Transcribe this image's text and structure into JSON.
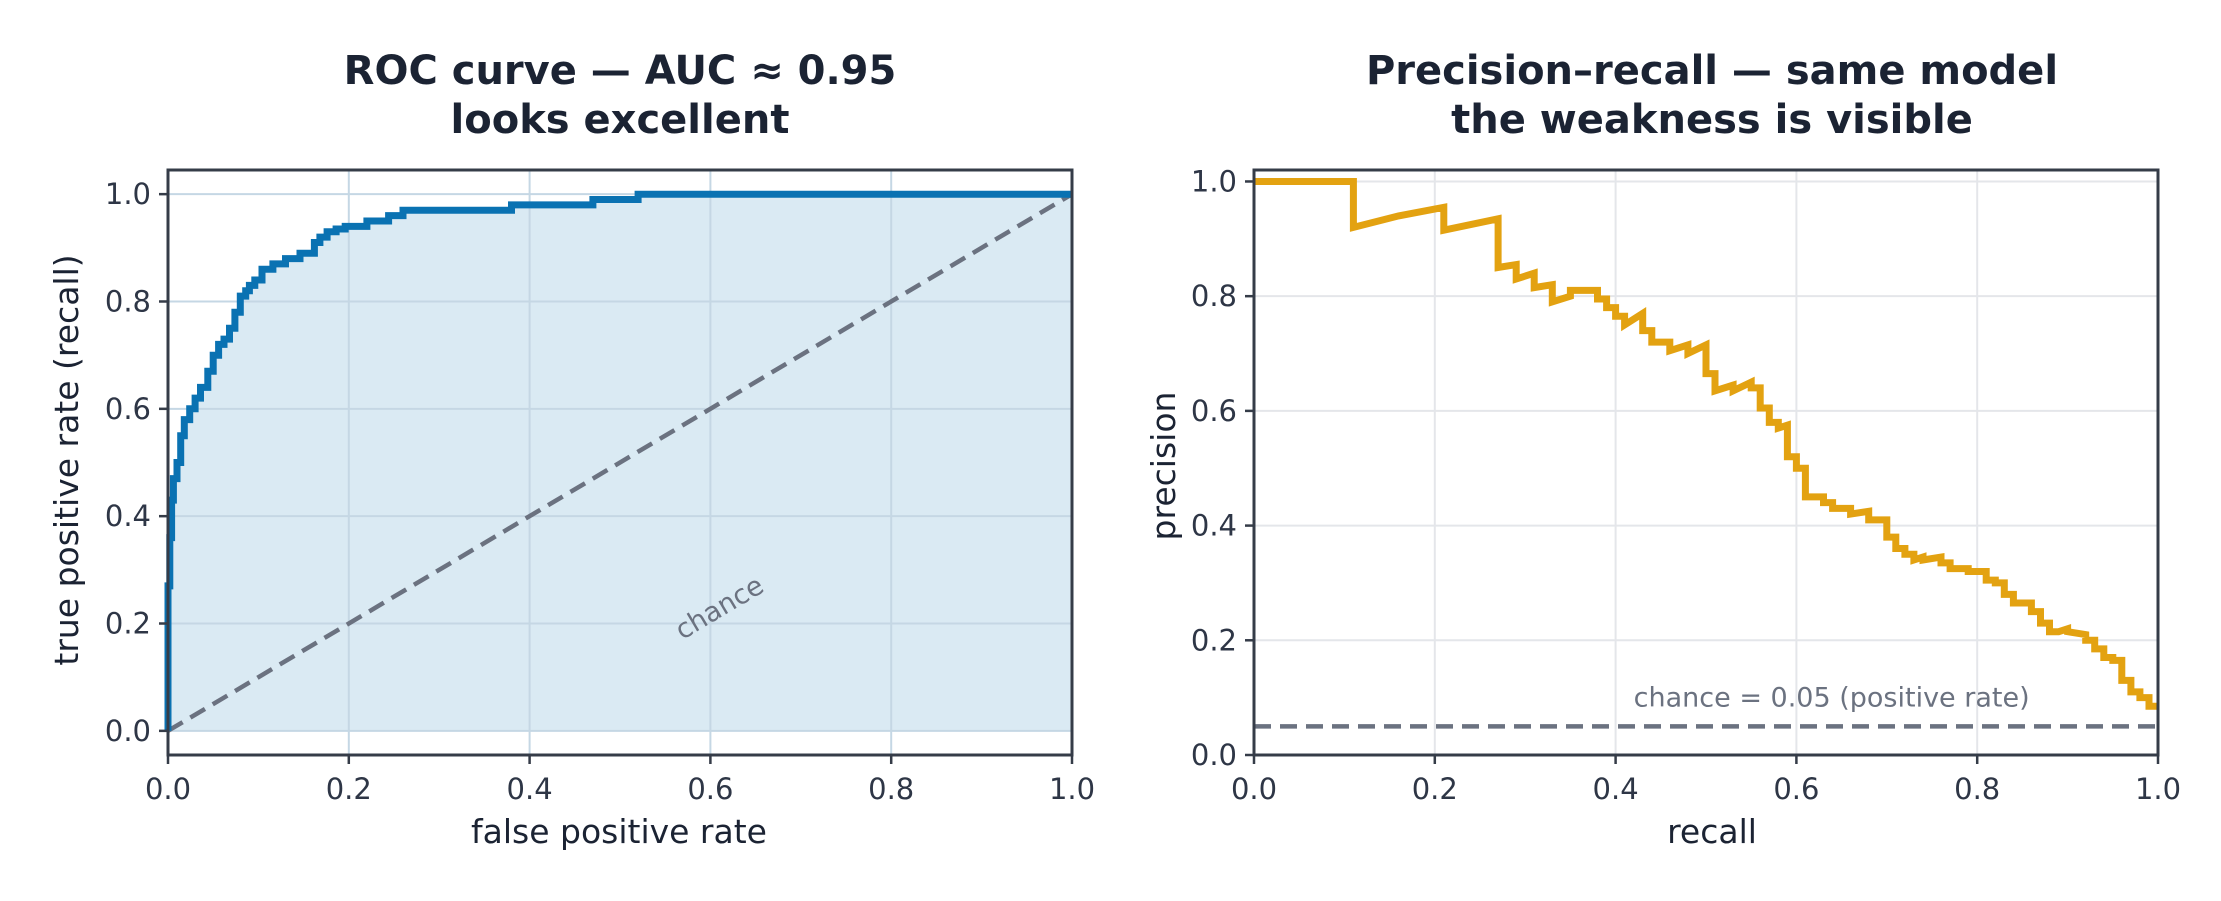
{
  "colors": {
    "roc_line": "#0a72b2",
    "roc_fill": "#daeaf3",
    "pr_line": "#e3a211",
    "chance_line": "#6b7280"
  },
  "chart_data": [
    {
      "type": "line",
      "title": "ROC curve — AUC ≈ 0.95",
      "subtitle": "looks excellent",
      "xlabel": "false positive rate",
      "ylabel": "true positive rate (recall)",
      "xlim": [
        0,
        1
      ],
      "ylim": [
        0,
        1
      ],
      "xticks": [
        "0.0",
        "0.2",
        "0.4",
        "0.6",
        "0.8",
        "1.0"
      ],
      "yticks": [
        "0.0",
        "0.2",
        "0.4",
        "0.6",
        "0.8",
        "1.0"
      ],
      "grid": true,
      "area_under_curve_filled": true,
      "series": [
        {
          "x": [
            0.0,
            0.0,
            0.002,
            0.002,
            0.004,
            0.004,
            0.006,
            0.006,
            0.01,
            0.01,
            0.014,
            0.014,
            0.018,
            0.018,
            0.024,
            0.024,
            0.03,
            0.03,
            0.036,
            0.036,
            0.044,
            0.044,
            0.05,
            0.05,
            0.056,
            0.056,
            0.062,
            0.062,
            0.068,
            0.068,
            0.074,
            0.074,
            0.08,
            0.08,
            0.086,
            0.086,
            0.09,
            0.09,
            0.096,
            0.096,
            0.104,
            0.104,
            0.116,
            0.116,
            0.13,
            0.13,
            0.146,
            0.146,
            0.162,
            0.162,
            0.168,
            0.168,
            0.176,
            0.176,
            0.186,
            0.186,
            0.196,
            0.196,
            0.22,
            0.22,
            0.244,
            0.244,
            0.26,
            0.26,
            0.38,
            0.38,
            0.47,
            0.47,
            0.52,
            0.52,
            1.0
          ],
          "y": [
            0.0,
            0.27,
            0.27,
            0.36,
            0.36,
            0.43,
            0.43,
            0.47,
            0.47,
            0.5,
            0.5,
            0.55,
            0.55,
            0.58,
            0.58,
            0.6,
            0.6,
            0.62,
            0.62,
            0.64,
            0.64,
            0.67,
            0.67,
            0.7,
            0.7,
            0.72,
            0.72,
            0.73,
            0.73,
            0.75,
            0.75,
            0.78,
            0.78,
            0.81,
            0.81,
            0.82,
            0.82,
            0.83,
            0.83,
            0.84,
            0.84,
            0.86,
            0.86,
            0.87,
            0.87,
            0.88,
            0.88,
            0.89,
            0.89,
            0.91,
            0.91,
            0.92,
            0.92,
            0.93,
            0.93,
            0.935,
            0.935,
            0.94,
            0.94,
            0.95,
            0.95,
            0.96,
            0.96,
            0.97,
            0.97,
            0.98,
            0.98,
            0.99,
            0.99,
            1.0,
            1.0
          ]
        }
      ],
      "reference_line": {
        "x": [
          0,
          1
        ],
        "y": [
          0,
          1
        ],
        "label": "chance"
      }
    },
    {
      "type": "line",
      "title": "Precision–recall — same model",
      "subtitle": "the weakness is visible",
      "xlabel": "recall",
      "ylabel": "precision",
      "xlim": [
        0,
        1
      ],
      "ylim": [
        0,
        1.02
      ],
      "xticks": [
        "0.0",
        "0.2",
        "0.4",
        "0.6",
        "0.8",
        "1.0"
      ],
      "yticks": [
        "0.0",
        "0.2",
        "0.4",
        "0.6",
        "0.8",
        "1.0"
      ],
      "grid": true,
      "series": [
        {
          "x": [
            0.0,
            0.11,
            0.11,
            0.16,
            0.21,
            0.21,
            0.27,
            0.27,
            0.29,
            0.29,
            0.31,
            0.31,
            0.33,
            0.33,
            0.35,
            0.35,
            0.38,
            0.38,
            0.39,
            0.39,
            0.4,
            0.4,
            0.41,
            0.41,
            0.43,
            0.43,
            0.44,
            0.44,
            0.46,
            0.46,
            0.48,
            0.48,
            0.5,
            0.5,
            0.51,
            0.51,
            0.53,
            0.53,
            0.55,
            0.55,
            0.56,
            0.56,
            0.57,
            0.57,
            0.58,
            0.58,
            0.59,
            0.59,
            0.6,
            0.6,
            0.61,
            0.61,
            0.63,
            0.63,
            0.64,
            0.64,
            0.66,
            0.66,
            0.68,
            0.68,
            0.7,
            0.7,
            0.71,
            0.71,
            0.72,
            0.72,
            0.73,
            0.73,
            0.74,
            0.74,
            0.76,
            0.76,
            0.77,
            0.77,
            0.79,
            0.79,
            0.81,
            0.81,
            0.82,
            0.82,
            0.83,
            0.83,
            0.84,
            0.84,
            0.86,
            0.86,
            0.87,
            0.87,
            0.88,
            0.88,
            0.89,
            0.89,
            0.9,
            0.9,
            0.92,
            0.92,
            0.93,
            0.93,
            0.94,
            0.94,
            0.95,
            0.95,
            0.96,
            0.96,
            0.97,
            0.97,
            0.98,
            0.98,
            0.99,
            0.99,
            1.0
          ],
          "y": [
            1.0,
            1.0,
            0.92,
            0.94,
            0.955,
            0.915,
            0.935,
            0.85,
            0.855,
            0.83,
            0.84,
            0.815,
            0.82,
            0.79,
            0.8,
            0.81,
            0.81,
            0.795,
            0.795,
            0.78,
            0.78,
            0.765,
            0.765,
            0.75,
            0.77,
            0.74,
            0.74,
            0.72,
            0.72,
            0.705,
            0.715,
            0.7,
            0.715,
            0.665,
            0.665,
            0.635,
            0.645,
            0.635,
            0.65,
            0.64,
            0.64,
            0.605,
            0.605,
            0.58,
            0.58,
            0.57,
            0.575,
            0.52,
            0.52,
            0.5,
            0.5,
            0.45,
            0.45,
            0.44,
            0.44,
            0.43,
            0.43,
            0.42,
            0.425,
            0.41,
            0.41,
            0.38,
            0.38,
            0.36,
            0.36,
            0.35,
            0.35,
            0.34,
            0.345,
            0.34,
            0.345,
            0.335,
            0.335,
            0.325,
            0.325,
            0.32,
            0.32,
            0.305,
            0.305,
            0.3,
            0.3,
            0.28,
            0.28,
            0.265,
            0.265,
            0.25,
            0.25,
            0.23,
            0.23,
            0.215,
            0.215,
            0.215,
            0.22,
            0.215,
            0.21,
            0.2,
            0.2,
            0.185,
            0.185,
            0.17,
            0.17,
            0.165,
            0.165,
            0.13,
            0.13,
            0.11,
            0.11,
            0.1,
            0.1,
            0.085,
            0.085
          ]
        }
      ],
      "reference_line": {
        "x": [
          0,
          1
        ],
        "y": [
          0.05,
          0.05
        ],
        "label": "chance = 0.05 (positive rate)"
      }
    }
  ]
}
